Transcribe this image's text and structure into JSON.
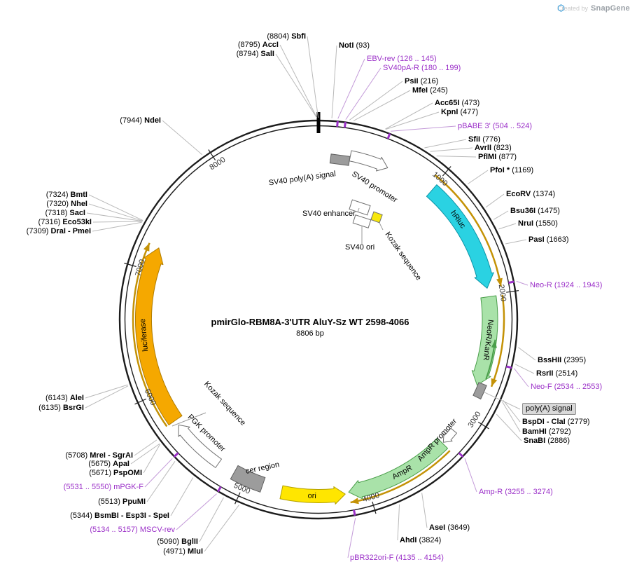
{
  "watermark": {
    "prefix": "Created by",
    "brand": "SnapGene"
  },
  "title": "pmirGlo-RBM8A-3'UTR AluY-Sz WT 2598-4066",
  "length_label": "8806 bp",
  "plasmid_length": 8806,
  "tick_labels": [
    "1000",
    "2000",
    "3000",
    "4000",
    "5000",
    "6000",
    "7000",
    "8000"
  ],
  "colors": {
    "primer": "#9b30c8",
    "leader": "#b9b9b9",
    "primer_leader": "#c39ad8",
    "orf_arc": "#c49206",
    "ring": "#1c1c1c"
  },
  "features": [
    {
      "label": "SV40 poly(A) signal",
      "color": "#9c9c9c"
    },
    {
      "label": "SV40 promoter",
      "color": "#ffffff"
    },
    {
      "label": "SV40 enhancer",
      "color": "#ffffff"
    },
    {
      "label": "SV40 ori",
      "color": "#ffffff"
    },
    {
      "label": "Kozak sequence",
      "color": "#f7e70c"
    },
    {
      "label": "hRluc",
      "color": "#2ad2e2"
    },
    {
      "label": "NeoR/KanR",
      "color": "#a9e2a9"
    },
    {
      "label": "poly(A) signal",
      "color": "#9c9c9c"
    },
    {
      "label": "AmpR promoter",
      "color": "#ffffff"
    },
    {
      "label": "AmpR",
      "color": "#a9e2a9"
    },
    {
      "label": "ori",
      "color": "#ffe600"
    },
    {
      "label": "cer region",
      "color": "#9c9c9c"
    },
    {
      "label": "PGK promoter",
      "color": "#ffffff"
    },
    {
      "label": "Kozak sequence",
      "color": ""
    },
    {
      "label": "luciferase",
      "color": "#f5a800"
    }
  ],
  "sites": [
    {
      "name": "SbfI",
      "pos": "(8804)",
      "bp": 8804,
      "kind": "enzyme"
    },
    {
      "name": "AccI",
      "pos": "(8795)",
      "bp": 8795,
      "kind": "enzyme"
    },
    {
      "name": "SalI",
      "pos": "(8794)",
      "bp": 8794,
      "kind": "enzyme"
    },
    {
      "name": "NotI",
      "pos": "(93)",
      "bp": 93,
      "kind": "enzyme"
    },
    {
      "name": "EBV-rev",
      "pos": "(126 .. 145)",
      "bp": 135,
      "kind": "primer"
    },
    {
      "name": "SV40pA-R",
      "pos": "(180 .. 199)",
      "bp": 190,
      "kind": "primer"
    },
    {
      "name": "PsiI",
      "pos": "(216)",
      "bp": 216,
      "kind": "enzyme"
    },
    {
      "name": "MfeI",
      "pos": "(245)",
      "bp": 245,
      "kind": "enzyme"
    },
    {
      "name": "Acc65I",
      "pos": "(473)",
      "bp": 473,
      "kind": "enzyme"
    },
    {
      "name": "KpnI",
      "pos": "(477)",
      "bp": 477,
      "kind": "enzyme"
    },
    {
      "name": "pBABE 3'",
      "pos": "(504 .. 524)",
      "bp": 514,
      "kind": "primer"
    },
    {
      "name": "SfiI",
      "pos": "(776)",
      "bp": 776,
      "kind": "enzyme"
    },
    {
      "name": "AvrII",
      "pos": "(823)",
      "bp": 823,
      "kind": "enzyme"
    },
    {
      "name": "PflMI",
      "pos": "(877)",
      "bp": 877,
      "kind": "enzyme"
    },
    {
      "name": "PfoI *",
      "pos": "(1169)",
      "bp": 1169,
      "kind": "enzyme"
    },
    {
      "name": "EcoRV",
      "pos": "(1374)",
      "bp": 1374,
      "kind": "enzyme"
    },
    {
      "name": "Bsu36I",
      "pos": "(1475)",
      "bp": 1475,
      "kind": "enzyme"
    },
    {
      "name": "NruI",
      "pos": "(1550)",
      "bp": 1550,
      "kind": "enzyme"
    },
    {
      "name": "PasI",
      "pos": "(1663)",
      "bp": 1663,
      "kind": "enzyme"
    },
    {
      "name": "Neo-R",
      "pos": "(1924 .. 1943)",
      "bp": 1934,
      "kind": "primer"
    },
    {
      "name": "BssHII",
      "pos": "(2395)",
      "bp": 2395,
      "kind": "enzyme"
    },
    {
      "name": "RsrII",
      "pos": "(2514)",
      "bp": 2514,
      "kind": "enzyme"
    },
    {
      "name": "Neo-F",
      "pos": "(2534 .. 2553)",
      "bp": 2544,
      "kind": "primer"
    },
    {
      "name": "poly(A) signal",
      "pos": "",
      "bp": 2780,
      "kind": "boxlabel"
    },
    {
      "name": "BspDI - ClaI",
      "pos": "(2779)",
      "bp": 2779,
      "kind": "enzyme"
    },
    {
      "name": "BamHI",
      "pos": "(2792)",
      "bp": 2792,
      "kind": "enzyme"
    },
    {
      "name": "SnaBI",
      "pos": "(2886)",
      "bp": 2886,
      "kind": "enzyme"
    },
    {
      "name": "Amp-R",
      "pos": "(3255 .. 3274)",
      "bp": 3265,
      "kind": "primer"
    },
    {
      "name": "AseI",
      "pos": "(3649)",
      "bp": 3649,
      "kind": "enzyme"
    },
    {
      "name": "AhdI",
      "pos": "(3824)",
      "bp": 3824,
      "kind": "enzyme"
    },
    {
      "name": "pBR322ori-F",
      "pos": "(4135 .. 4154)",
      "bp": 4145,
      "kind": "primer"
    },
    {
      "name": "MluI",
      "pos": "(4971)",
      "bp": 4971,
      "kind": "enzyme"
    },
    {
      "name": "BglII",
      "pos": "(5090)",
      "bp": 5090,
      "kind": "enzyme"
    },
    {
      "name": "MSCV-rev",
      "pos": "(5134 .. 5157)",
      "bp": 5145,
      "kind": "primer"
    },
    {
      "name": "BsmBI - Esp3I - SpeI",
      "pos": "(5344)",
      "bp": 5344,
      "kind": "enzyme"
    },
    {
      "name": "PpuMI",
      "pos": "(5513)",
      "bp": 5513,
      "kind": "enzyme"
    },
    {
      "name": "mPGK-F",
      "pos": "(5531 .. 5550)",
      "bp": 5540,
      "kind": "primer"
    },
    {
      "name": "PspOMI",
      "pos": "(5671)",
      "bp": 5671,
      "kind": "enzyme"
    },
    {
      "name": "ApaI",
      "pos": "(5675)",
      "bp": 5675,
      "kind": "enzyme"
    },
    {
      "name": "MreI - SgrAI",
      "pos": "(5708)",
      "bp": 5708,
      "kind": "enzyme"
    },
    {
      "name": "BsrGI",
      "pos": "(6135)",
      "bp": 6135,
      "kind": "enzyme"
    },
    {
      "name": "AleI",
      "pos": "(6143)",
      "bp": 6143,
      "kind": "enzyme"
    },
    {
      "name": "DraI - PmeI",
      "pos": "(7309)",
      "bp": 7309,
      "kind": "enzyme"
    },
    {
      "name": "Eco53kI",
      "pos": "(7316)",
      "bp": 7316,
      "kind": "enzyme"
    },
    {
      "name": "SacI",
      "pos": "(7318)",
      "bp": 7318,
      "kind": "enzyme"
    },
    {
      "name": "NheI",
      "pos": "(7320)",
      "bp": 7320,
      "kind": "enzyme"
    },
    {
      "name": "BmtI",
      "pos": "(7324)",
      "bp": 7324,
      "kind": "enzyme"
    },
    {
      "name": "NdeI",
      "pos": "(7944)",
      "bp": 7944,
      "kind": "enzyme"
    }
  ]
}
